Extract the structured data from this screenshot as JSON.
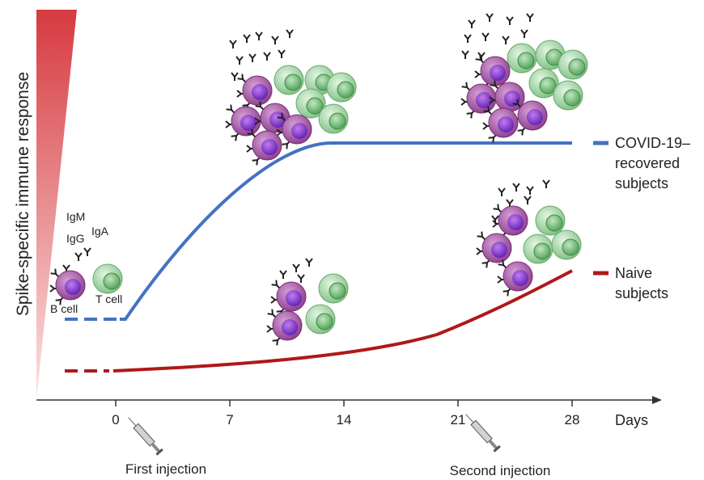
{
  "y_axis_label": "Spike-specific immune response",
  "x_axis": {
    "label": "Days",
    "ticks": [
      0,
      7,
      14,
      21,
      28
    ]
  },
  "injections": [
    "First injection",
    "Second injection"
  ],
  "cell_labels": {
    "igm": "IgM",
    "igg": "IgG",
    "iga": "IgA",
    "b_cell": "B cell",
    "t_cell": "T cell"
  },
  "legend": [
    {
      "lines": [
        "COVID-19–",
        "recovered",
        "subjects"
      ]
    },
    {
      "lines": [
        "Naive",
        "subjects"
      ]
    }
  ]
}
